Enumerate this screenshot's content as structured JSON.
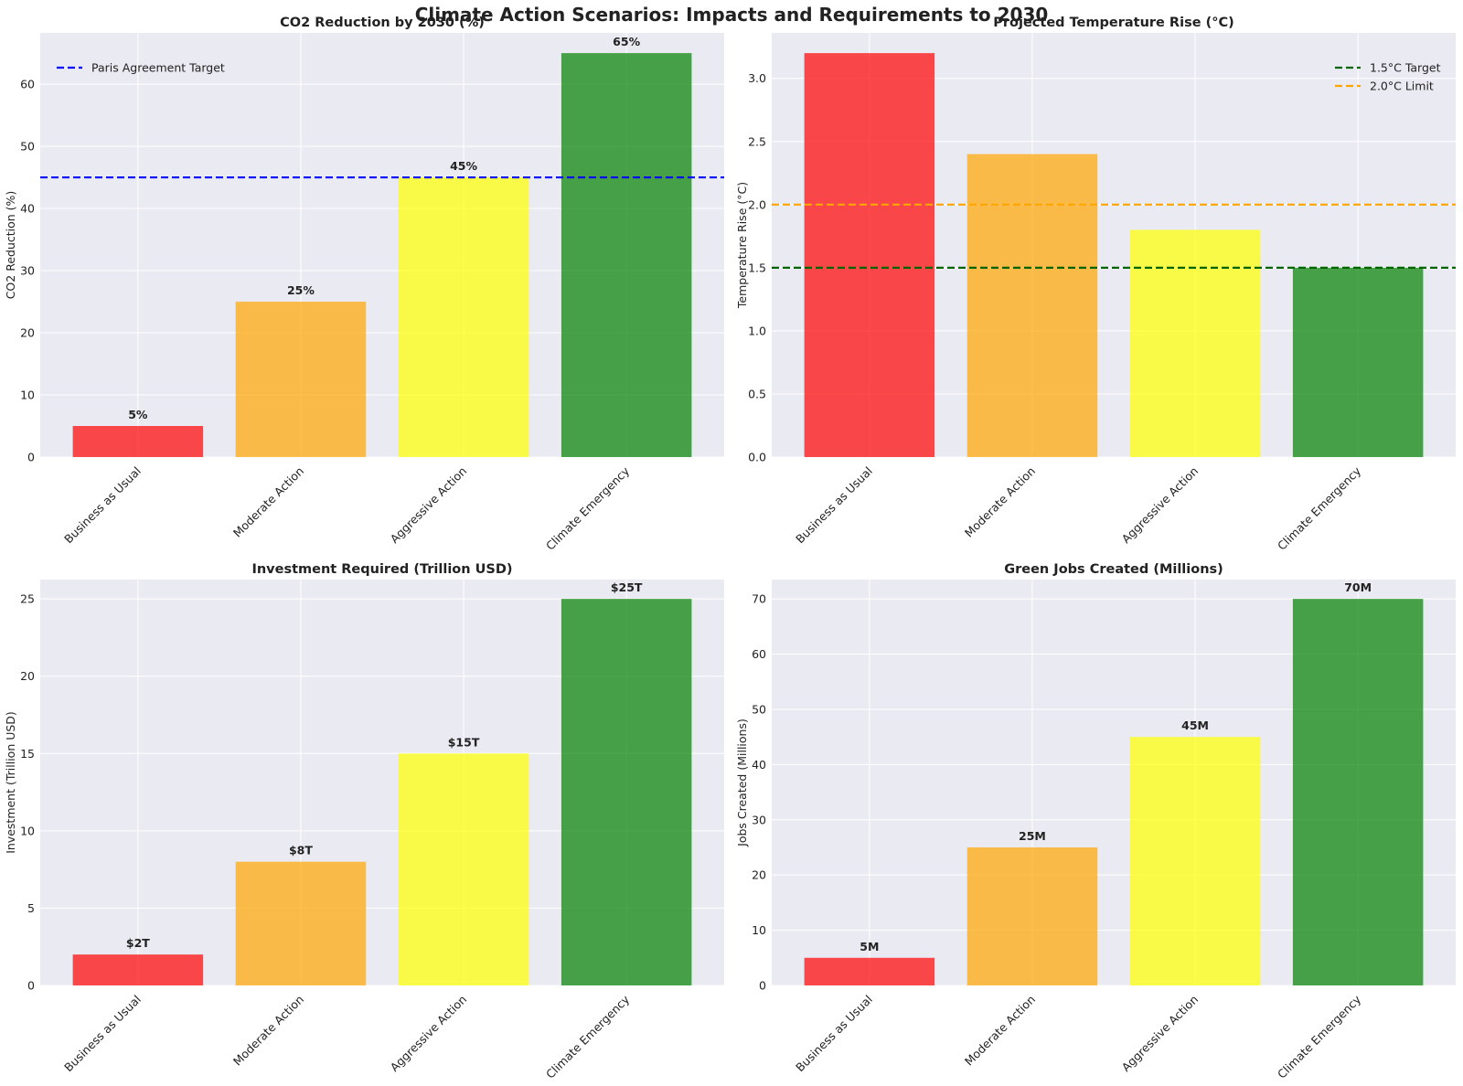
{
  "figure_title": "Climate Action Scenarios: Impacts and Requirements to 2030",
  "colors": {
    "bars": [
      "#ff0000",
      "#ffa500",
      "#ffff00",
      "#008000"
    ],
    "plot_background": "#eaeaf2",
    "grid": "#ffffff",
    "text": "#222222"
  },
  "chart_data": [
    {
      "type": "bar",
      "title": "CO2 Reduction by 2030 (%)",
      "xlabel": "",
      "ylabel": "CO2 Reduction (%)",
      "categories": [
        "Business as Usual",
        "Moderate Action",
        "Aggressive Action",
        "Climate Emergency"
      ],
      "values": [
        5,
        25,
        45,
        65
      ],
      "value_labels": [
        "5%",
        "25%",
        "45%",
        "65%"
      ],
      "ylim": [
        0,
        68.25
      ],
      "yticks": [
        0,
        10,
        20,
        30,
        40,
        50,
        60
      ],
      "ytick_labels": [
        "0",
        "10",
        "20",
        "30",
        "40",
        "50",
        "60"
      ],
      "reference_lines": [
        {
          "value": 45,
          "label": "Paris Agreement Target",
          "color": "#0000ff"
        }
      ],
      "legend": "top-left",
      "grid": true
    },
    {
      "type": "bar",
      "title": "Projected Temperature Rise (°C)",
      "xlabel": "",
      "ylabel": "Temperature Rise (°C)",
      "categories": [
        "Business as Usual",
        "Moderate Action",
        "Aggressive Action",
        "Climate Emergency"
      ],
      "values": [
        3.2,
        2.4,
        1.8,
        1.5
      ],
      "value_labels": [],
      "ylim": [
        0,
        3.36
      ],
      "yticks": [
        0,
        0.5,
        1.0,
        1.5,
        2.0,
        2.5,
        3.0
      ],
      "ytick_labels": [
        "0.0",
        "0.5",
        "1.0",
        "1.5",
        "2.0",
        "2.5",
        "3.0"
      ],
      "reference_lines": [
        {
          "value": 1.5,
          "label": "1.5°C Target",
          "color": "#006400"
        },
        {
          "value": 2.0,
          "label": "2.0°C Limit",
          "color": "#ffa500"
        }
      ],
      "legend": "top-right",
      "grid": true
    },
    {
      "type": "bar",
      "title": "Investment Required (Trillion USD)",
      "xlabel": "",
      "ylabel": "Investment (Trillion USD)",
      "categories": [
        "Business as Usual",
        "Moderate Action",
        "Aggressive Action",
        "Climate Emergency"
      ],
      "values": [
        2,
        8,
        15,
        25
      ],
      "value_labels": [
        "$2T",
        "$8T",
        "$15T",
        "$25T"
      ],
      "ylim": [
        0,
        26.25
      ],
      "yticks": [
        0,
        5,
        10,
        15,
        20,
        25
      ],
      "ytick_labels": [
        "0",
        "5",
        "10",
        "15",
        "20",
        "25"
      ],
      "reference_lines": [],
      "legend": "none",
      "grid": true
    },
    {
      "type": "bar",
      "title": "Green Jobs Created (Millions)",
      "xlabel": "",
      "ylabel": "Jobs Created (Millions)",
      "categories": [
        "Business as Usual",
        "Moderate Action",
        "Aggressive Action",
        "Climate Emergency"
      ],
      "values": [
        5,
        25,
        45,
        70
      ],
      "value_labels": [
        "5M",
        "25M",
        "45M",
        "70M"
      ],
      "ylim": [
        0,
        73.5
      ],
      "yticks": [
        0,
        10,
        20,
        30,
        40,
        50,
        60,
        70
      ],
      "ytick_labels": [
        "0",
        "10",
        "20",
        "30",
        "40",
        "50",
        "60",
        "70"
      ],
      "reference_lines": [],
      "legend": "none",
      "grid": true
    }
  ]
}
